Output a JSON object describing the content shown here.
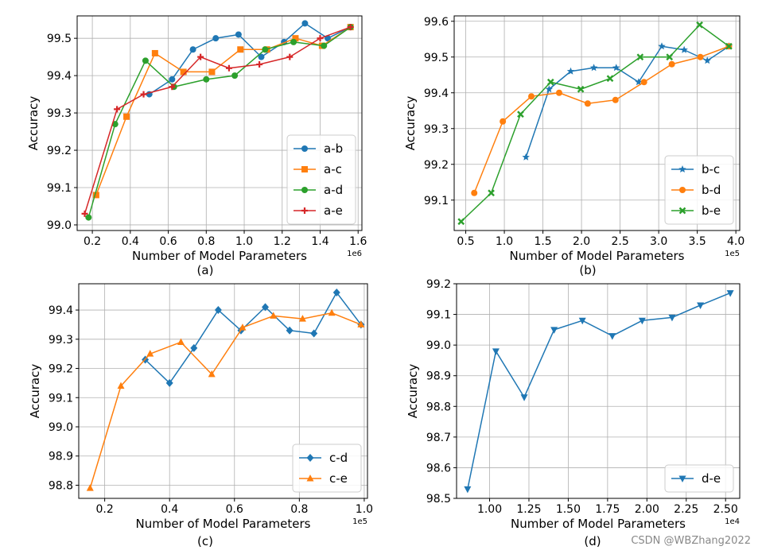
{
  "watermark": "CSDN @WBZhang2022",
  "colors": {
    "blue": "#1f77b4",
    "orange": "#ff7f0e",
    "green": "#2ca02c",
    "red": "#d62728"
  },
  "chart_data": [
    {
      "id": "a",
      "type": "line",
      "caption": "(a)",
      "xlabel": "Number of Model Parameters",
      "ylabel": "Accuracy",
      "x_scale_label": "1e6",
      "x_scale": 1000000,
      "xlim": [
        0.12,
        1.62
      ],
      "ylim": [
        98.985,
        99.56
      ],
      "xticks": [
        0.2,
        0.4,
        0.6,
        0.8,
        1.0,
        1.2,
        1.4,
        1.6
      ],
      "xtick_labels": [
        "0.2",
        "0.4",
        "0.6",
        "0.8",
        "1.0",
        "1.2",
        "1.4",
        "1.6"
      ],
      "yticks": [
        99.0,
        99.1,
        99.2,
        99.3,
        99.4,
        99.5
      ],
      "ytick_labels": [
        "99.0",
        "99.1",
        "99.2",
        "99.3",
        "99.4",
        "99.5"
      ],
      "grid": true,
      "legend_loc": "lower-right",
      "series": [
        {
          "name": "a-b",
          "color": "#1f77b4",
          "marker": "circle",
          "x": [
            0.5,
            0.62,
            0.73,
            0.85,
            0.97,
            1.09,
            1.21,
            1.32,
            1.44,
            1.56
          ],
          "y": [
            99.35,
            99.39,
            99.47,
            99.5,
            99.51,
            99.45,
            99.49,
            99.54,
            99.5,
            99.53
          ]
        },
        {
          "name": "a-c",
          "color": "#ff7f0e",
          "marker": "square",
          "x": [
            0.22,
            0.38,
            0.53,
            0.68,
            0.83,
            0.98,
            1.12,
            1.27,
            1.41,
            1.56
          ],
          "y": [
            99.08,
            99.29,
            99.46,
            99.41,
            99.41,
            99.47,
            99.47,
            99.5,
            99.48,
            99.53
          ]
        },
        {
          "name": "a-d",
          "color": "#2ca02c",
          "marker": "circle",
          "x": [
            0.18,
            0.32,
            0.48,
            0.63,
            0.8,
            0.95,
            1.11,
            1.26,
            1.42,
            1.56
          ],
          "y": [
            99.02,
            99.27,
            99.44,
            99.37,
            99.39,
            99.4,
            99.47,
            99.49,
            99.48,
            99.53
          ]
        },
        {
          "name": "a-e",
          "color": "#d62728",
          "marker": "plus",
          "x": [
            0.16,
            0.33,
            0.47,
            0.62,
            0.77,
            0.92,
            1.08,
            1.24,
            1.4,
            1.56
          ],
          "y": [
            99.03,
            99.31,
            99.35,
            99.37,
            99.45,
            99.42,
            99.43,
            99.45,
            99.5,
            99.53
          ]
        }
      ]
    },
    {
      "id": "b",
      "type": "line",
      "caption": "(b)",
      "xlabel": "Number of Model Parameters",
      "ylabel": "Accuracy",
      "x_scale_label": "1e5",
      "x_scale": 100000,
      "xlim": [
        0.35,
        4.05
      ],
      "ylim": [
        99.015,
        99.615
      ],
      "xticks": [
        0.5,
        1.0,
        1.5,
        2.0,
        2.5,
        3.0,
        3.5,
        4.0
      ],
      "xtick_labels": [
        "0.5",
        "1.0",
        "1.5",
        "2.0",
        "2.5",
        "3.0",
        "3.5",
        "4.0"
      ],
      "yticks": [
        99.1,
        99.2,
        99.3,
        99.4,
        99.5,
        99.6
      ],
      "ytick_labels": [
        "99.1",
        "99.2",
        "99.3",
        "99.4",
        "99.5",
        "99.6"
      ],
      "grid": true,
      "legend_loc": "lower-right",
      "series": [
        {
          "name": "b-c",
          "color": "#1f77b4",
          "marker": "star",
          "x": [
            1.28,
            1.58,
            1.86,
            2.16,
            2.45,
            2.74,
            3.04,
            3.33,
            3.63,
            3.91
          ],
          "y": [
            99.22,
            99.41,
            99.46,
            99.47,
            99.47,
            99.43,
            99.53,
            99.52,
            99.49,
            99.53
          ]
        },
        {
          "name": "b-d",
          "color": "#ff7f0e",
          "marker": "circle",
          "x": [
            0.61,
            0.98,
            1.35,
            1.71,
            2.08,
            2.44,
            2.81,
            3.17,
            3.54,
            3.91
          ],
          "y": [
            99.12,
            99.32,
            99.39,
            99.4,
            99.37,
            99.38,
            99.43,
            99.48,
            99.5,
            99.53
          ]
        },
        {
          "name": "b-e",
          "color": "#2ca02c",
          "marker": "x",
          "x": [
            0.44,
            0.83,
            1.21,
            1.6,
            1.99,
            2.37,
            2.76,
            3.14,
            3.53,
            3.91
          ],
          "y": [
            99.04,
            99.12,
            99.34,
            99.43,
            99.41,
            99.44,
            99.5,
            99.5,
            99.59,
            99.53
          ]
        }
      ]
    },
    {
      "id": "c",
      "type": "line",
      "caption": "(c)",
      "xlabel": "Number of Model Parameters",
      "ylabel": "Accuracy",
      "x_scale_label": "1e5",
      "x_scale": 100000,
      "xlim": [
        0.12,
        1.01
      ],
      "ylim": [
        98.755,
        99.49
      ],
      "xticks": [
        0.2,
        0.4,
        0.6,
        0.8,
        1.0
      ],
      "xtick_labels": [
        "0.2",
        "0.4",
        "0.6",
        "0.8",
        "1.0"
      ],
      "yticks": [
        98.8,
        98.9,
        99.0,
        99.1,
        99.2,
        99.3,
        99.4
      ],
      "ytick_labels": [
        "98.8",
        "98.9",
        "99.0",
        "99.1",
        "99.2",
        "99.3",
        "99.4"
      ],
      "grid": true,
      "legend_loc": "lower-right",
      "series": [
        {
          "name": "c-d",
          "color": "#1f77b4",
          "marker": "diamond",
          "x": [
            0.325,
            0.4,
            0.475,
            0.55,
            0.62,
            0.695,
            0.77,
            0.845,
            0.915,
            0.99
          ],
          "y": [
            99.23,
            99.15,
            99.27,
            99.4,
            99.33,
            99.41,
            99.33,
            99.32,
            99.46,
            99.35
          ]
        },
        {
          "name": "c-e",
          "color": "#ff7f0e",
          "marker": "triangle-up",
          "x": [
            0.155,
            0.25,
            0.34,
            0.435,
            0.53,
            0.625,
            0.72,
            0.81,
            0.9,
            0.99
          ],
          "y": [
            98.79,
            99.14,
            99.25,
            99.29,
            99.18,
            99.34,
            99.38,
            99.37,
            99.39,
            99.35
          ]
        }
      ]
    },
    {
      "id": "d",
      "type": "line",
      "caption": "(d)",
      "xlabel": "Number of Model Parameters",
      "ylabel": "Accuracy",
      "x_scale_label": "1e4",
      "x_scale": 10000,
      "xlim": [
        0.79,
        2.59
      ],
      "ylim": [
        98.5,
        99.2
      ],
      "xticks": [
        1.0,
        1.25,
        1.5,
        1.75,
        2.0,
        2.25,
        2.5
      ],
      "xtick_labels": [
        "1.00",
        "1.25",
        "1.50",
        "1.75",
        "2.00",
        "2.25",
        "2.50"
      ],
      "yticks": [
        98.5,
        98.6,
        98.7,
        98.8,
        98.9,
        99.0,
        99.1,
        99.2
      ],
      "ytick_labels": [
        "98.5",
        "98.6",
        "98.7",
        "98.8",
        "98.9",
        "99.0",
        "99.1",
        "99.2"
      ],
      "grid": true,
      "legend_loc": "lower-right",
      "series": [
        {
          "name": "d-e",
          "color": "#1f77b4",
          "marker": "triangle-down",
          "x": [
            0.86,
            1.04,
            1.22,
            1.41,
            1.59,
            1.78,
            1.97,
            2.16,
            2.34,
            2.53
          ],
          "y": [
            98.53,
            98.98,
            98.83,
            99.05,
            99.08,
            99.03,
            99.08,
            99.09,
            99.13,
            99.17
          ]
        }
      ]
    }
  ]
}
